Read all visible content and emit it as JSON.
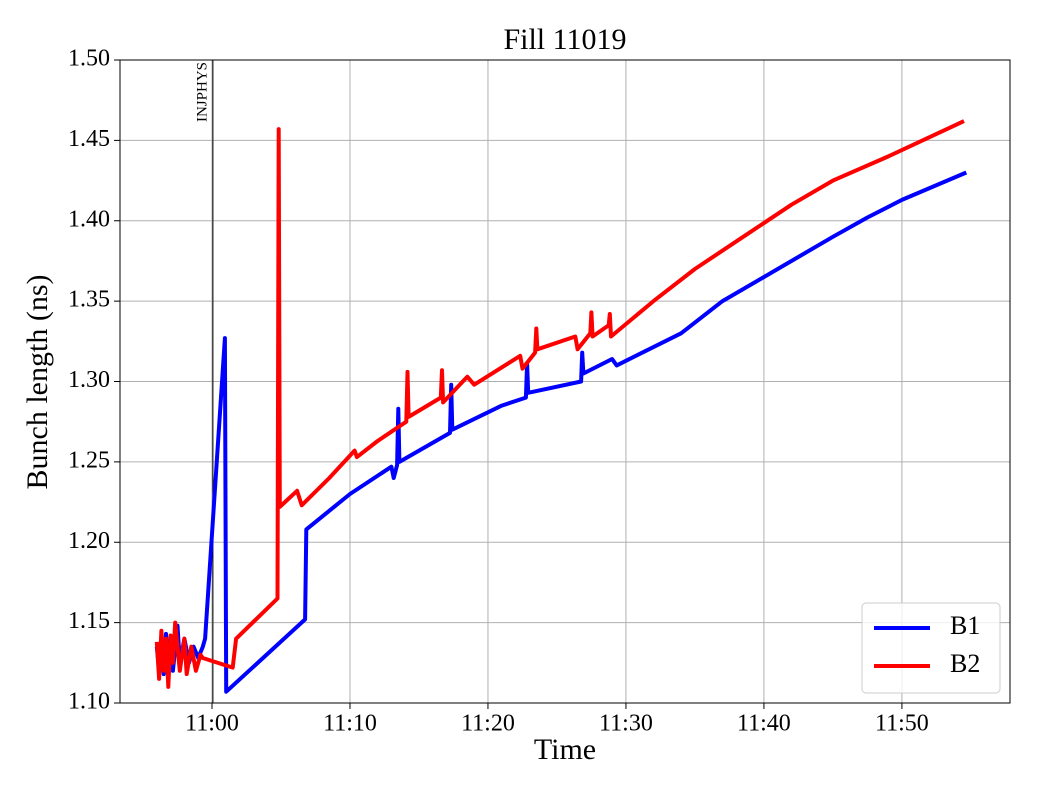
{
  "chart_data": {
    "type": "line",
    "title": "Fill 11019",
    "xlabel": "Time",
    "ylabel": "Bunch length (ns)",
    "xlim": [
      "10:53:20",
      "11:57:50"
    ],
    "xticks": [
      "11:00",
      "11:10",
      "11:20",
      "11:30",
      "11:40",
      "11:50"
    ],
    "ylim": [
      1.1,
      1.5
    ],
    "yticks": [
      {
        "value": 1.1,
        "label": "1.10"
      },
      1.15,
      {
        "value": 1.2,
        "label": "1.20"
      },
      1.25,
      {
        "value": 1.3,
        "label": "1.30"
      },
      1.35,
      {
        "value": 1.4,
        "label": "1.40"
      },
      1.45,
      {
        "value": 1.5,
        "label": "1.50"
      }
    ],
    "grid": true,
    "legend": "lower right",
    "annotations": [
      {
        "x": "11:00:04",
        "text": "INJPHYS"
      }
    ],
    "series": [
      {
        "name": "B1",
        "color": "#0000ff",
        "x": [
          "10:56:00",
          "10:56:10",
          "10:56:20",
          "10:56:30",
          "10:56:40",
          "10:56:50",
          "10:57:00",
          "10:57:10",
          "10:57:30",
          "10:57:40",
          "10:58:00",
          "10:58:20",
          "10:58:40",
          "10:59:00",
          "10:59:20",
          "10:59:30",
          "11:00:56",
          "11:01:02",
          "11:06:45",
          "11:06:50",
          "11:10:00",
          "11:13:00",
          "11:13:10",
          "11:13:25",
          "11:13:30",
          "11:13:35",
          "11:17:15",
          "11:17:20",
          "11:17:25",
          "11:21:00",
          "11:22:45",
          "11:22:50",
          "11:22:55",
          "11:26:45",
          "11:26:50",
          "11:26:55",
          "11:29:00",
          "11:29:20",
          "11:34:00",
          "11:37:00",
          "11:41:00",
          "11:45:00",
          "11:47:30",
          "11:50:00",
          "11:54:40"
        ],
        "values": [
          1.135,
          1.12,
          1.14,
          1.118,
          1.143,
          1.125,
          1.14,
          1.12,
          1.148,
          1.125,
          1.14,
          1.125,
          1.135,
          1.128,
          1.135,
          1.14,
          1.327,
          1.107,
          1.152,
          1.208,
          1.23,
          1.247,
          1.24,
          1.248,
          1.283,
          1.25,
          1.268,
          1.298,
          1.27,
          1.285,
          1.29,
          1.311,
          1.293,
          1.3,
          1.318,
          1.305,
          1.314,
          1.31,
          1.33,
          1.35,
          1.37,
          1.39,
          1.402,
          1.413,
          1.43
        ]
      },
      {
        "name": "B2",
        "color": "#ff0000",
        "x": [
          "10:56:00",
          "10:56:10",
          "10:56:20",
          "10:56:30",
          "10:56:40",
          "10:56:50",
          "10:57:00",
          "10:57:10",
          "10:57:20",
          "10:57:40",
          "10:58:00",
          "10:58:10",
          "10:58:30",
          "10:58:50",
          "10:59:10",
          "10:59:20",
          "11:01:30",
          "11:01:45",
          "11:04:45",
          "11:04:50",
          "11:04:55",
          "11:06:10",
          "11:06:30",
          "11:08:30",
          "11:10:20",
          "11:10:30",
          "11:12:00",
          "11:14:05",
          "11:14:10",
          "11:14:15",
          "11:16:35",
          "11:16:40",
          "11:16:45",
          "11:18:30",
          "11:19:00",
          "11:22:20",
          "11:22:30",
          "11:23:25",
          "11:23:30",
          "11:23:35",
          "11:26:20",
          "11:26:30",
          "11:27:25",
          "11:27:30",
          "11:27:35",
          "11:28:45",
          "11:28:50",
          "11:28:55",
          "11:32:00",
          "11:35:00",
          "11:38:30",
          "11:42:00",
          "11:45:00",
          "11:49:00",
          "11:54:30"
        ],
        "values": [
          1.138,
          1.115,
          1.145,
          1.12,
          1.14,
          1.11,
          1.142,
          1.125,
          1.15,
          1.12,
          1.14,
          1.118,
          1.135,
          1.12,
          1.13,
          1.128,
          1.122,
          1.14,
          1.165,
          1.457,
          1.222,
          1.232,
          1.223,
          1.24,
          1.257,
          1.253,
          1.263,
          1.275,
          1.306,
          1.278,
          1.29,
          1.307,
          1.287,
          1.303,
          1.298,
          1.316,
          1.308,
          1.318,
          1.333,
          1.32,
          1.328,
          1.32,
          1.33,
          1.343,
          1.328,
          1.335,
          1.342,
          1.328,
          1.35,
          1.37,
          1.39,
          1.41,
          1.425,
          1.44,
          1.462
        ]
      }
    ]
  }
}
